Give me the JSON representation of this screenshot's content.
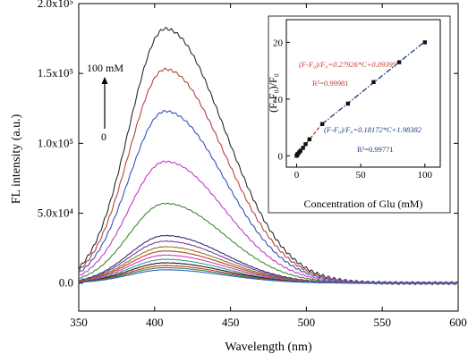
{
  "chart_data": [
    {
      "type": "line",
      "xlabel": "Wavelength (nm)",
      "ylabel": "FL intensity (a.u.)",
      "xlim": [
        350,
        600
      ],
      "ylim": [
        -20000,
        200000
      ],
      "x_ticks": [
        "350",
        "400",
        "450",
        "500",
        "550",
        "600"
      ],
      "y_ticks": [
        {
          "value": 0,
          "label": "0.0"
        },
        {
          "value": 50000,
          "label": "5.0x10⁴"
        },
        {
          "value": 100000,
          "label": "1.0x10⁵"
        },
        {
          "value": 150000,
          "label": "1.5x10⁵"
        },
        {
          "value": 200000,
          "label": "2.0x10⁵"
        }
      ],
      "peak_wavelength": 407,
      "series": [
        {
          "color": "#2b2b2b",
          "peak": 182000
        },
        {
          "color": "#b5463a",
          "peak": 153000
        },
        {
          "color": "#3452b8",
          "peak": 123000
        },
        {
          "color": "#c23cc7",
          "peak": 87000
        },
        {
          "color": "#3d8a31",
          "peak": 57000
        },
        {
          "color": "#2d2d6e",
          "peak": 34000
        },
        {
          "color": "#7a3aa0",
          "peak": 30000
        },
        {
          "color": "#8a7d1f",
          "peak": 26000
        },
        {
          "color": "#b3421a",
          "peak": 23000
        },
        {
          "color": "#d63cbf",
          "peak": 20000
        },
        {
          "color": "#3b9b88",
          "peak": 17000
        },
        {
          "color": "#1a1a1a",
          "peak": 14500
        },
        {
          "color": "#c4352a",
          "peak": 12500
        },
        {
          "color": "#3a8f3a",
          "peak": 11000
        },
        {
          "color": "#3060d0",
          "peak": 9500
        }
      ],
      "annotation": {
        "top_label": "100 mM",
        "bottom_label": "0"
      }
    },
    {
      "type": "scatter",
      "xlabel": "Concentration of Glu (mM)",
      "ylabel": "(F-F₀)/F₀",
      "xlim": [
        -8,
        112
      ],
      "ylim": [
        -2,
        24
      ],
      "x_ticks": [
        "0",
        "50",
        "100"
      ],
      "y_ticks": [
        "0",
        "10",
        "20"
      ],
      "points": [
        {
          "x": 0,
          "y": 0.0
        },
        {
          "x": 0.5,
          "y": 0.2
        },
        {
          "x": 1,
          "y": 0.35
        },
        {
          "x": 2,
          "y": 0.6
        },
        {
          "x": 3,
          "y": 0.9
        },
        {
          "x": 5,
          "y": 1.4
        },
        {
          "x": 7,
          "y": 2.05
        },
        {
          "x": 10,
          "y": 2.9
        },
        {
          "x": 20,
          "y": 5.6
        },
        {
          "x": 40,
          "y": 9.2
        },
        {
          "x": 60,
          "y": 13.0
        },
        {
          "x": 80,
          "y": 16.5
        },
        {
          "x": 100,
          "y": 20.0
        }
      ],
      "fit_low": {
        "slope": 0.27926,
        "intercept": 0.09395,
        "x_range": [
          0,
          20
        ],
        "color": "#c0392b"
      },
      "fit_high": {
        "slope": 0.18172,
        "intercept": 1.98382,
        "x_range": [
          20,
          100
        ],
        "color": "#1f3c88"
      },
      "fit_low_equation": "(F-F₀)/F₀=0.27926*C+0.09395",
      "fit_low_r2": "R²=0.99981",
      "fit_high_equation": "(F-F₀)/F₀=0.18172*C+1.98382",
      "fit_high_r2": "R²=0.99771"
    }
  ]
}
